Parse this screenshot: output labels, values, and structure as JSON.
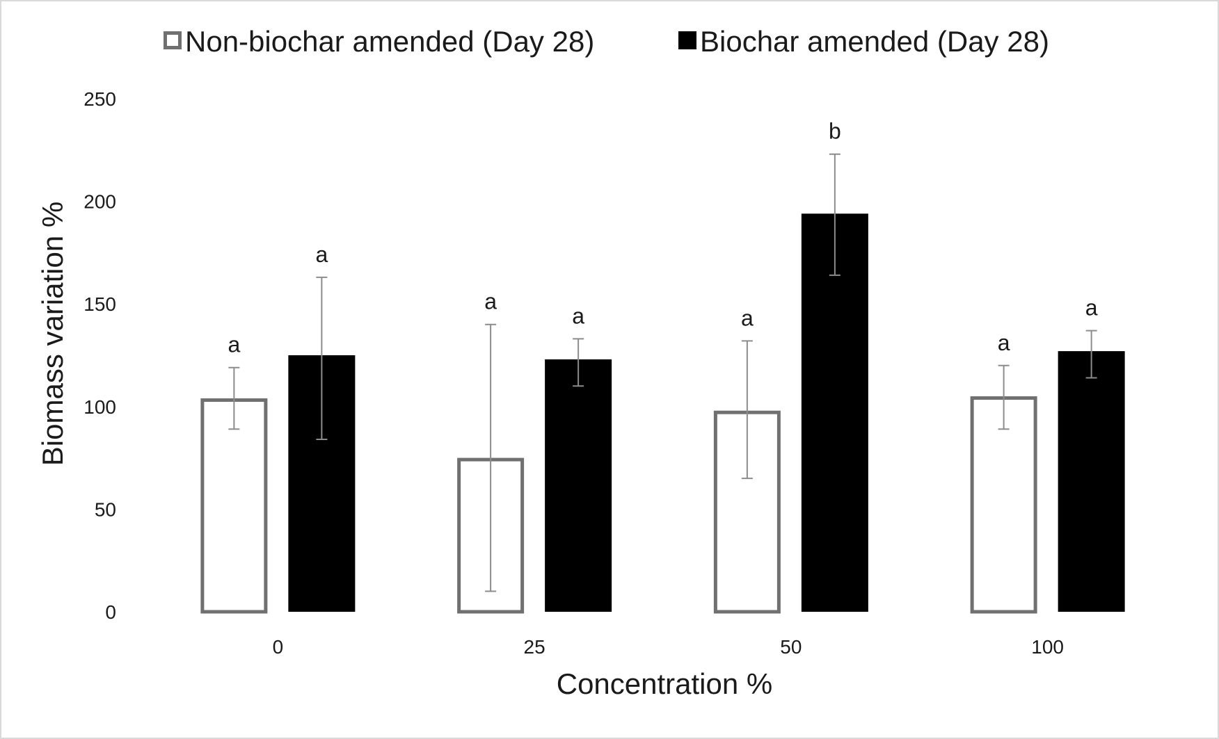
{
  "chart_data": {
    "type": "bar",
    "title": "",
    "xlabel": "Concentration %",
    "ylabel": "Biomass variation %",
    "categories": [
      "0",
      "25",
      "50",
      "100"
    ],
    "ylim": [
      0,
      250
    ],
    "yticks": [
      0,
      50,
      100,
      150,
      200,
      250
    ],
    "grid": false,
    "legend_position": "top-center",
    "series": [
      {
        "name": "Non-biochar amended (Day 28)",
        "style": "outline",
        "color": "#707070",
        "fill": "#ffffff",
        "values": [
          104,
          75,
          98,
          105
        ],
        "error_low": [
          89,
          10,
          65,
          89
        ],
        "error_high": [
          119,
          140,
          132,
          120
        ],
        "significance": [
          "a",
          "a",
          "a",
          "a"
        ]
      },
      {
        "name": "Biochar amended (Day 28)",
        "style": "filled",
        "color": "#000000",
        "fill": "#000000",
        "values": [
          125,
          123,
          194,
          127
        ],
        "error_low": [
          84,
          110,
          164,
          114
        ],
        "error_high": [
          163,
          133,
          223,
          137
        ],
        "significance": [
          "a",
          "a",
          "b",
          "a"
        ]
      }
    ]
  }
}
